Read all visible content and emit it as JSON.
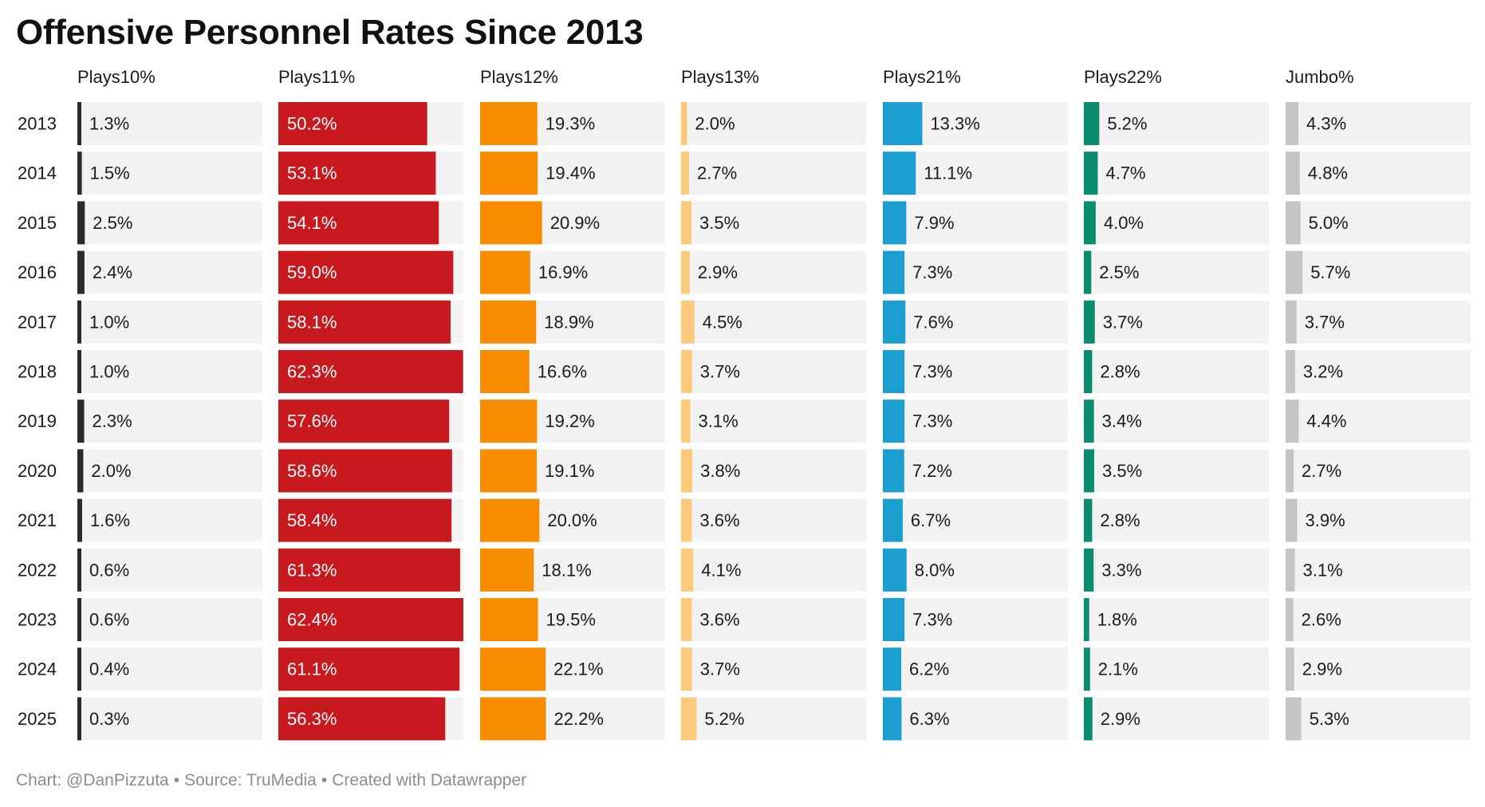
{
  "title": "Offensive Personnel Rates Since 2013",
  "footer": {
    "chart_credit": "Chart: @DanPizzuta",
    "source": "Source: TruMedia",
    "created_with": "Created with Datawrapper",
    "separator": "•"
  },
  "colors": {
    "track": "#f2f2f2",
    "text": "#1a1a1a",
    "label_on_bar": "#ffffff"
  },
  "chart_data": {
    "type": "table",
    "years": [
      "2013",
      "2014",
      "2015",
      "2016",
      "2017",
      "2018",
      "2019",
      "2020",
      "2021",
      "2022",
      "2023",
      "2024",
      "2025"
    ],
    "columns": [
      {
        "header": "Plays10%",
        "color": "#2b2b2b",
        "values": [
          1.3,
          1.5,
          2.5,
          2.4,
          1.0,
          1.0,
          2.3,
          2.0,
          1.6,
          0.6,
          0.6,
          0.4,
          0.3
        ],
        "labels": [
          "1.3%",
          "1.5%",
          "2.5%",
          "2.4%",
          "1.0%",
          "1.0%",
          "2.3%",
          "2.0%",
          "1.6%",
          "0.6%",
          "0.6%",
          "0.4%",
          "0.3%"
        ]
      },
      {
        "header": "Plays11%",
        "color": "#c8191e",
        "label_inside": true,
        "values": [
          50.2,
          53.1,
          54.1,
          59.0,
          58.1,
          62.3,
          57.6,
          58.6,
          58.4,
          61.3,
          62.4,
          61.1,
          56.3
        ],
        "labels": [
          "50.2%",
          "53.1%",
          "54.1%",
          "59.0%",
          "58.1%",
          "62.3%",
          "57.6%",
          "58.6%",
          "58.4%",
          "61.3%",
          "62.4%",
          "61.1%",
          "56.3%"
        ]
      },
      {
        "header": "Plays12%",
        "color": "#f78c00",
        "values": [
          19.3,
          19.4,
          20.9,
          16.9,
          18.9,
          16.6,
          19.2,
          19.1,
          20.0,
          18.1,
          19.5,
          22.1,
          22.2
        ],
        "labels": [
          "19.3%",
          "19.4%",
          "20.9%",
          "16.9%",
          "18.9%",
          "16.6%",
          "19.2%",
          "19.1%",
          "20.0%",
          "18.1%",
          "19.5%",
          "22.1%",
          "22.2%"
        ]
      },
      {
        "header": "Plays13%",
        "color": "#fdc97a",
        "values": [
          2.0,
          2.7,
          3.5,
          2.9,
          4.5,
          3.7,
          3.1,
          3.8,
          3.6,
          4.1,
          3.6,
          3.7,
          5.2
        ],
        "labels": [
          "2.0%",
          "2.7%",
          "3.5%",
          "2.9%",
          "4.5%",
          "3.7%",
          "3.1%",
          "3.8%",
          "3.6%",
          "4.1%",
          "3.6%",
          "3.7%",
          "5.2%"
        ]
      },
      {
        "header": "Plays21%",
        "color": "#1a9fd0",
        "values": [
          13.3,
          11.1,
          7.9,
          7.3,
          7.6,
          7.3,
          7.3,
          7.2,
          6.7,
          8.0,
          7.3,
          6.2,
          6.3
        ],
        "labels": [
          "13.3%",
          "11.1%",
          "7.9%",
          "7.3%",
          "7.6%",
          "7.3%",
          "7.3%",
          "7.2%",
          "6.7%",
          "8.0%",
          "7.3%",
          "6.2%",
          "6.3%"
        ]
      },
      {
        "header": "Plays22%",
        "color": "#0a8c6e",
        "values": [
          5.2,
          4.7,
          4.0,
          2.5,
          3.7,
          2.8,
          3.4,
          3.5,
          2.8,
          3.3,
          1.8,
          2.1,
          2.9
        ],
        "labels": [
          "5.2%",
          "4.7%",
          "4.0%",
          "2.5%",
          "3.7%",
          "2.8%",
          "3.4%",
          "3.5%",
          "2.8%",
          "3.3%",
          "1.8%",
          "2.1%",
          "2.9%"
        ]
      },
      {
        "header": "Jumbo%",
        "color": "#c4c4c4",
        "values": [
          4.3,
          4.8,
          5.0,
          5.7,
          3.7,
          3.2,
          4.4,
          2.7,
          3.9,
          3.1,
          2.6,
          2.9,
          5.3
        ],
        "labels": [
          "4.3%",
          "4.8%",
          "5.0%",
          "5.7%",
          "3.7%",
          "3.2%",
          "4.4%",
          "2.7%",
          "3.9%",
          "3.1%",
          "2.6%",
          "2.9%",
          "5.3%"
        ]
      }
    ]
  }
}
